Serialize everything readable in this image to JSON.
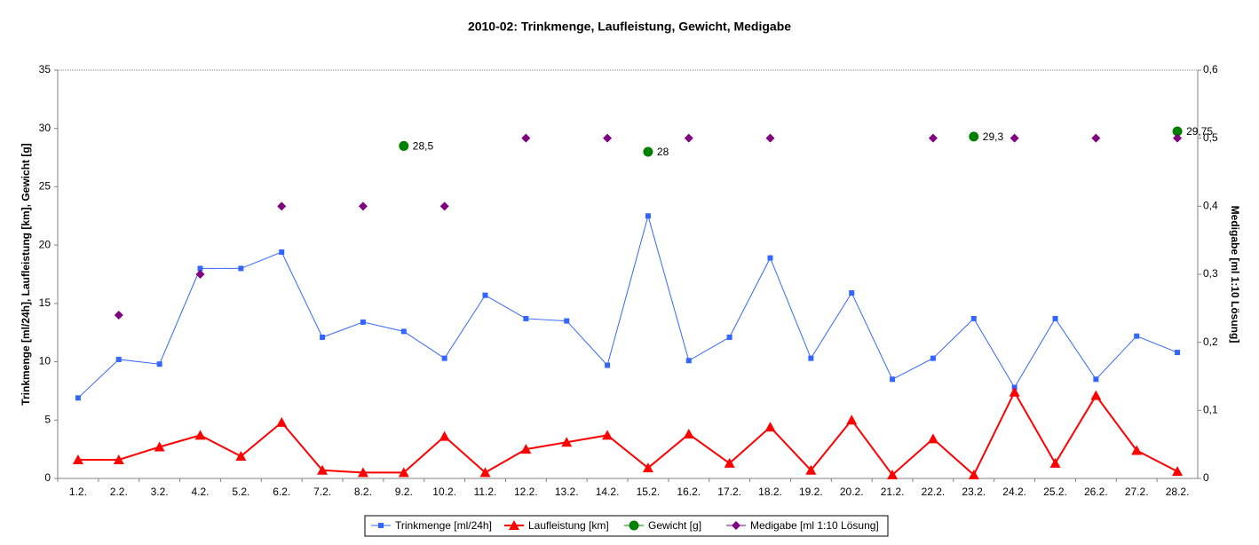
{
  "chart_data": {
    "type": "line",
    "title": "2010-02: Trinkmenge, Laufleistung, Gewicht, Medigabe",
    "y_label": "Trinkmenge [ml/24h], Laufleistung [km], Gewicht [g]",
    "y2_label": "Medigabe [ml 1:10 Lösung]",
    "categories": [
      "1.2.",
      "2.2.",
      "3.2.",
      "4.2.",
      "5.2.",
      "6.2.",
      "7.2.",
      "8.2.",
      "9.2.",
      "10.2.",
      "11.2.",
      "12.2.",
      "13.2.",
      "14.2.",
      "15.2.",
      "16.2.",
      "17.2.",
      "18.2.",
      "19.2.",
      "20.2.",
      "21.2.",
      "22.2.",
      "23.2.",
      "24.2.",
      "25.2.",
      "26.2.",
      "27.2.",
      "28.2."
    ],
    "ylim": [
      0,
      35
    ],
    "yticks": [
      0,
      5,
      10,
      15,
      20,
      25,
      30,
      35
    ],
    "y2lim": [
      0,
      0.6
    ],
    "y2ticks": [
      0,
      {
        "value": 0.1,
        "label": "0,1"
      },
      {
        "value": 0.2,
        "label": "0,2"
      },
      {
        "value": 0.3,
        "label": "0,3"
      },
      {
        "value": 0.4,
        "label": "0,4"
      },
      {
        "value": 0.5,
        "label": "0,5"
      },
      {
        "value": 0.6,
        "label": "0,6"
      }
    ],
    "legend": "bottom",
    "series": [
      {
        "name": "Trinkmenge [ml/24h]",
        "color": "#3366ff",
        "marker": "square",
        "line": true,
        "values": [
          6.9,
          10.2,
          9.8,
          18.0,
          18.0,
          19.4,
          12.1,
          13.4,
          12.6,
          10.3,
          15.7,
          13.7,
          13.5,
          9.7,
          22.5,
          10.1,
          12.1,
          18.9,
          10.3,
          15.9,
          8.5,
          10.3,
          13.7,
          7.8,
          13.7,
          8.5,
          12.2,
          10.8
        ]
      },
      {
        "name": "Laufleistung [km]",
        "color": "#ff0000",
        "marker": "triangle",
        "line": true,
        "values": [
          1.6,
          1.6,
          2.7,
          3.7,
          1.9,
          4.8,
          0.7,
          0.5,
          0.5,
          3.6,
          0.5,
          2.5,
          3.1,
          3.7,
          0.9,
          3.8,
          1.3,
          4.4,
          0.7,
          5.0,
          0.3,
          3.4,
          0.3,
          7.4,
          1.3,
          7.1,
          2.4,
          0.6
        ]
      },
      {
        "name": "Gewicht [g]",
        "color": "#008000",
        "marker": "circle",
        "line": false,
        "values": [
          null,
          null,
          null,
          null,
          null,
          null,
          null,
          null,
          28.5,
          null,
          null,
          null,
          null,
          null,
          28,
          null,
          null,
          null,
          null,
          null,
          null,
          null,
          29.3,
          null,
          null,
          null,
          null,
          29.75
        ],
        "value_labels": [
          null,
          null,
          null,
          null,
          null,
          null,
          null,
          null,
          "28,5",
          null,
          null,
          null,
          null,
          null,
          "28",
          null,
          null,
          null,
          null,
          null,
          null,
          null,
          "29,3",
          null,
          null,
          null,
          null,
          "29,75"
        ]
      },
      {
        "name": "Medigabe [ml 1:10 Lösung]",
        "color": "#800080",
        "marker": "diamond",
        "line": false,
        "axis": "y2",
        "values": [
          null,
          0.24,
          null,
          0.3,
          null,
          0.4,
          null,
          0.4,
          null,
          0.4,
          null,
          0.5,
          null,
          0.5,
          null,
          0.5,
          null,
          0.5,
          null,
          null,
          null,
          0.5,
          null,
          0.5,
          null,
          0.5,
          null,
          0.5
        ]
      }
    ]
  }
}
